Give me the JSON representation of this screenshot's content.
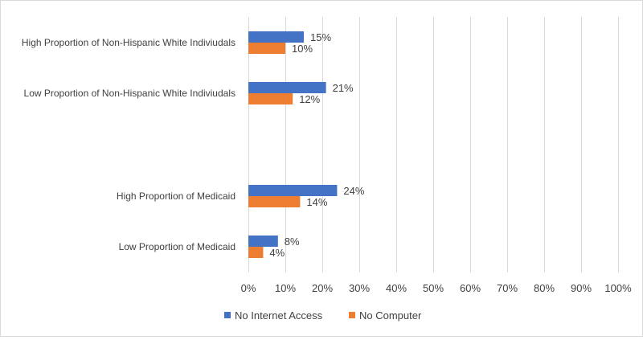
{
  "chart_data": {
    "type": "bar",
    "orientation": "horizontal",
    "title": "",
    "xlabel": "",
    "ylabel": "",
    "categories": [
      "High Proportion of Non-Hispanic White Indiviudals",
      "Low Proportion of Non-Hispanic White Indiviudals",
      "",
      "High Proportion of Medicaid",
      "Low Proportion of Medicaid"
    ],
    "series": [
      {
        "name": "No Internet Access",
        "color": "#4472C4",
        "values": [
          15,
          21,
          null,
          24,
          8
        ],
        "labels": [
          "15%",
          "21%",
          "",
          "24%",
          "8%"
        ]
      },
      {
        "name": "No Computer",
        "color": "#ED7D31",
        "values": [
          10,
          12,
          null,
          14,
          4
        ],
        "labels": [
          "10%",
          "12%",
          "",
          "14%",
          "4%"
        ]
      }
    ],
    "xlim": [
      0,
      100
    ],
    "xticks": [
      0,
      10,
      20,
      30,
      40,
      50,
      60,
      70,
      80,
      90,
      100
    ],
    "xtick_labels": [
      "0%",
      "10%",
      "20%",
      "30%",
      "40%",
      "50%",
      "60%",
      "70%",
      "80%",
      "90%",
      "100%"
    ],
    "grid": "vertical",
    "legend": "bottom-center"
  }
}
